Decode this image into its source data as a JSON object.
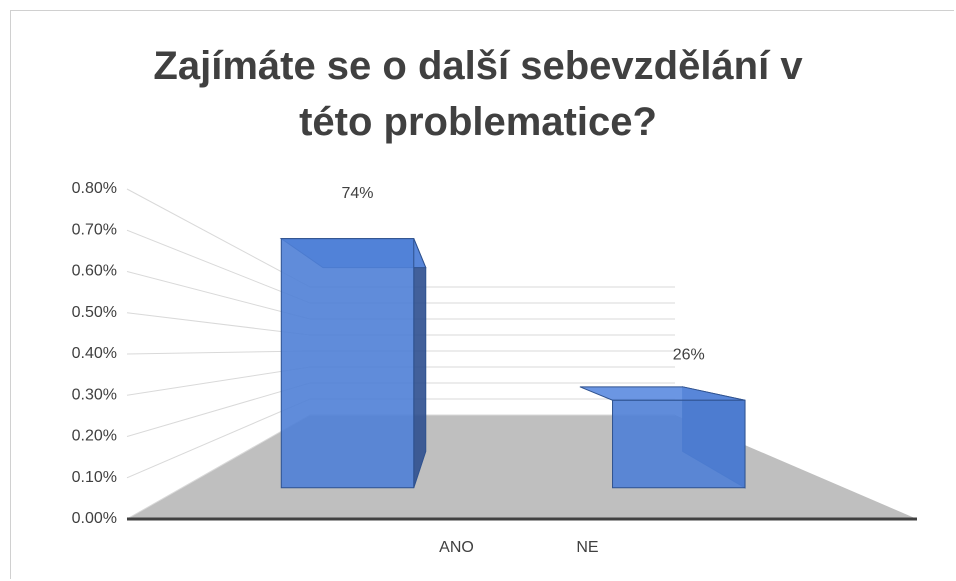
{
  "chart_data": {
    "type": "bar3d",
    "title": "Zajímáte se o další sebevzdělání v této problematice?",
    "categories": [
      "ANO",
      "NE"
    ],
    "values": [
      0.74,
      0.26
    ],
    "value_labels": [
      "74%",
      "26%"
    ],
    "color": "#4f7fd6",
    "ylim": [
      0,
      0.8
    ],
    "yticks": [
      {
        "value": 0,
        "label": "0.00%"
      },
      {
        "value": 0.1,
        "label": "0.10%"
      },
      {
        "value": 0.2,
        "label": "0.20%"
      },
      {
        "value": 0.3,
        "label": "0.30%"
      },
      {
        "value": 0.4,
        "label": "0.40%"
      },
      {
        "value": 0.5,
        "label": "0.50%"
      },
      {
        "value": 0.6,
        "label": "0.60%"
      },
      {
        "value": 0.7,
        "label": "0.70%"
      },
      {
        "value": 0.8,
        "label": "0.80%"
      }
    ],
    "grid": true
  }
}
